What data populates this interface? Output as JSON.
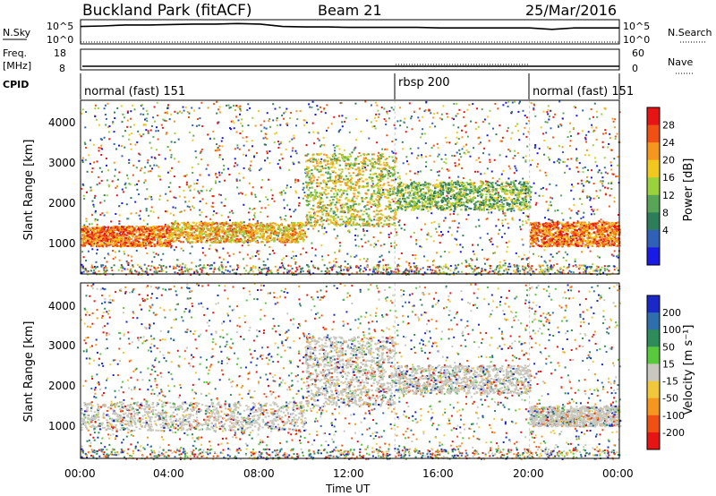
{
  "header": {
    "station": "Buckland Park (fitACF)",
    "beam": "Beam 21",
    "date": "25/Mar/2016"
  },
  "noise_panel": {
    "left_label": "N.Sky",
    "right_label": "N.Search",
    "tick_top": "10^5",
    "tick_bottom": "10^0",
    "sky_values": [
      3.6,
      3.7,
      3.9,
      3.9,
      4.0,
      4.1,
      4.1,
      4.2,
      4.1,
      3.6,
      3.5,
      3.5,
      3.4,
      3.4,
      3.4,
      3.4,
      3.3,
      3.3,
      3.3,
      3.3,
      3.3,
      3.0,
      3.3,
      3.3,
      3.3
    ]
  },
  "freq_panel": {
    "left_label_1": "Freq.",
    "left_label_2": "[MHz]",
    "right_label": "Nave",
    "ticks_left": [
      "18",
      "8"
    ],
    "ticks_right": [
      "60",
      "0"
    ]
  },
  "cpid": {
    "label": "CPID",
    "segments": [
      {
        "text": "normal (fast) 151",
        "start_hour": 0
      },
      {
        "text": "rbsp 200",
        "start_hour": 14
      },
      {
        "text": "normal (fast) 151",
        "start_hour": 20
      }
    ]
  },
  "power_panel": {
    "ylabel": "Slant Range [km]",
    "yticks": [
      "1000",
      "2000",
      "3000",
      "4000"
    ],
    "colorbar_label": "Power [dB]",
    "colorbar_ticks": [
      "4",
      "8",
      "12",
      "16",
      "20",
      "24",
      "28"
    ],
    "colors": [
      "#1a1ae6",
      "#3060b8",
      "#2e7d5a",
      "#58a558",
      "#9bd23c",
      "#f0c81e",
      "#f5961e",
      "#f05014",
      "#e61414"
    ]
  },
  "velocity_panel": {
    "ylabel": "Slant Range [km]",
    "yticks": [
      "1000",
      "2000",
      "3000",
      "4000"
    ],
    "colorbar_label": "Velocity [m s⁻¹]",
    "colorbar_ticks": [
      "200",
      "100",
      "50",
      "15",
      "-15",
      "-50",
      "-100",
      "-200"
    ],
    "colors": [
      "#1a28c8",
      "#2e6eaa",
      "#2e8c5a",
      "#5ac83c",
      "#c8c8be",
      "#f0c83c",
      "#f5961e",
      "#f05014",
      "#e61414"
    ]
  },
  "x_axis": {
    "ticks": [
      "00:00",
      "04:00",
      "08:00",
      "12:00",
      "16:00",
      "20:00",
      "00:00"
    ],
    "label": "Time UT"
  },
  "chart_data": [
    {
      "type": "line",
      "title": "",
      "ylabel": "N.Sky",
      "x_unit": "hour UT",
      "x": [
        0,
        1,
        2,
        3,
        4,
        5,
        6,
        7,
        8,
        9,
        10,
        11,
        12,
        13,
        14,
        15,
        16,
        17,
        18,
        19,
        20,
        21,
        22,
        23,
        24
      ],
      "series": [
        {
          "name": "N.Sky",
          "values": [
            3.6,
            3.7,
            3.9,
            3.9,
            4.0,
            4.1,
            4.1,
            4.2,
            4.1,
            3.6,
            3.5,
            3.5,
            3.4,
            3.4,
            3.4,
            3.4,
            3.3,
            3.3,
            3.3,
            3.3,
            3.3,
            3.0,
            3.3,
            3.3,
            3.3
          ]
        }
      ],
      "ylim": [
        0,
        5
      ]
    },
    {
      "type": "heatmap",
      "title": "",
      "xlabel": "Time UT",
      "ylabel": "Slant Range [km]",
      "colorbar": "Power [dB]",
      "xlim": [
        0,
        24
      ],
      "ylim": [
        200,
        4500
      ],
      "bands": [
        {
          "t0": 0,
          "t1": 4,
          "r0": 900,
          "r1": 1400,
          "value": 28
        },
        {
          "t0": 4,
          "t1": 10,
          "r0": 1000,
          "r1": 1500,
          "value": 24
        },
        {
          "t0": 10,
          "t1": 14,
          "r0": 1400,
          "r1": 3200,
          "value": 20
        },
        {
          "t0": 14,
          "t1": 20,
          "r0": 1800,
          "r1": 2500,
          "value": 16
        },
        {
          "t0": 20,
          "t1": 24,
          "r0": 900,
          "r1": 1500,
          "value": 28
        }
      ]
    },
    {
      "type": "heatmap",
      "title": "",
      "xlabel": "Time UT",
      "ylabel": "Slant Range [km]",
      "colorbar": "Velocity [m s⁻¹]",
      "xlim": [
        0,
        24
      ],
      "ylim": [
        200,
        4500
      ],
      "bands": [
        {
          "t0": 0,
          "t1": 10,
          "r0": 900,
          "r1": 1600,
          "value": 0
        },
        {
          "t0": 10,
          "t1": 14,
          "r0": 1500,
          "r1": 3200,
          "value": 0
        },
        {
          "t0": 14,
          "t1": 20,
          "r0": 1800,
          "r1": 2500,
          "value": 0
        },
        {
          "t0": 20,
          "t1": 24,
          "r0": 1000,
          "r1": 1500,
          "value": 0
        }
      ]
    }
  ]
}
